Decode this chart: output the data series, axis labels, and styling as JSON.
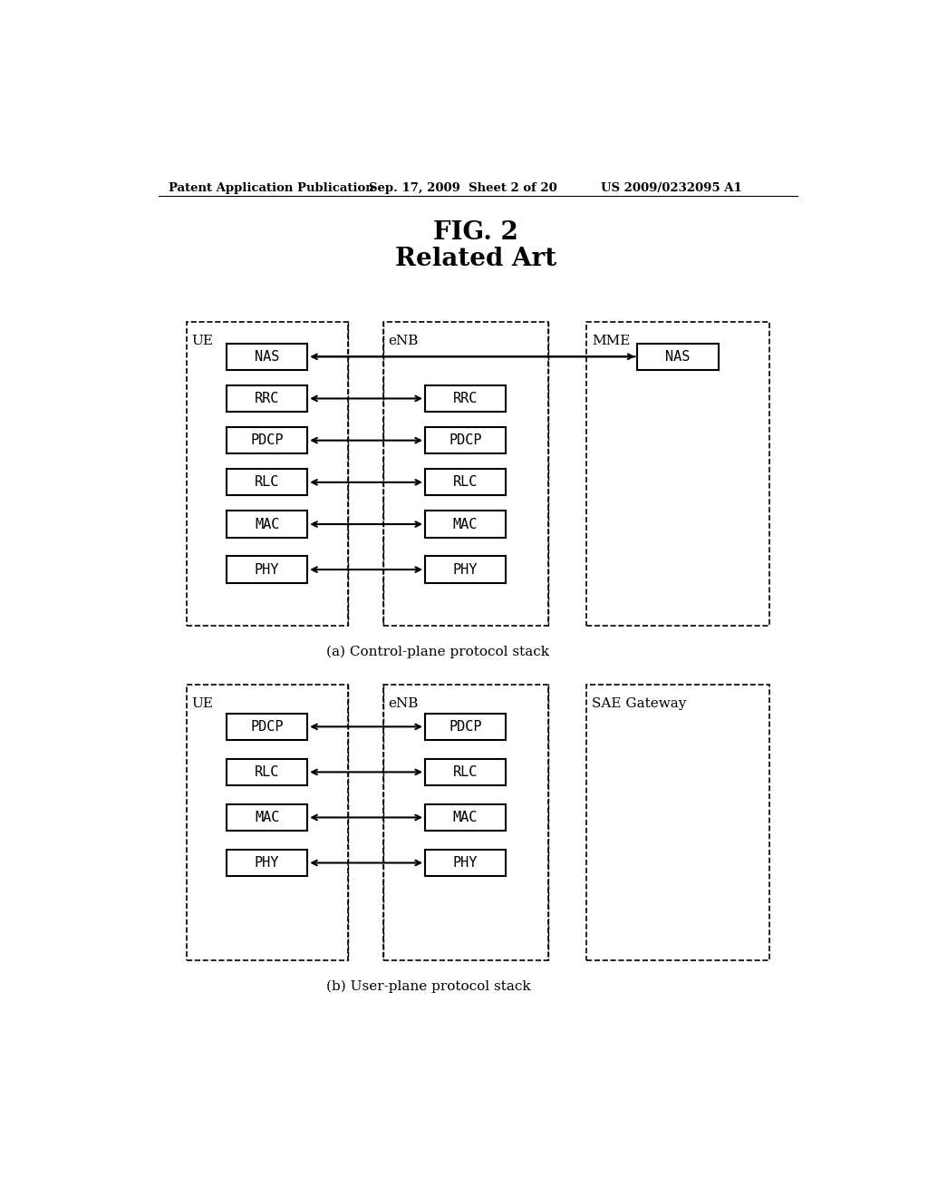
{
  "bg_color": "#ffffff",
  "header_left": "Patent Application Publication",
  "header_mid": "Sep. 17, 2009  Sheet 2 of 20",
  "header_right": "US 2009/0232095 A1",
  "fig_title_line1": "FIG. 2",
  "fig_title_line2": "Related Art",
  "diagram_a_caption": "(a) Control-plane protocol stack",
  "diagram_b_caption": "(b) User-plane protocol stack",
  "diagram_a": {
    "UE_label": "UE",
    "eNB_label": "eNB",
    "MME_label": "MME",
    "UE_layers": [
      "NAS",
      "RRC",
      "PDCP",
      "RLC",
      "MAC",
      "PHY"
    ],
    "eNB_layers": [
      "RRC",
      "PDCP",
      "RLC",
      "MAC",
      "PHY"
    ],
    "MME_layers": [
      "NAS"
    ]
  },
  "diagram_b": {
    "UE_label": "UE",
    "eNB_label": "eNB",
    "SAE_label": "SAE Gateway",
    "UE_layers": [
      "PDCP",
      "RLC",
      "MAC",
      "PHY"
    ],
    "eNB_layers": [
      "PDCP",
      "RLC",
      "MAC",
      "PHY"
    ]
  },
  "layout": {
    "fig_w": 10.24,
    "fig_h": 13.2,
    "dpi": 100
  }
}
